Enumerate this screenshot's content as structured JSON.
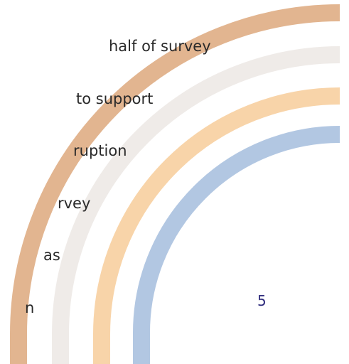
{
  "body_text": {
    "lines": [
      "half of survey",
      "to support",
      "ruption",
      "rvey",
      "as",
      "n"
    ]
  },
  "page_number": "5",
  "decoration": {
    "arc_colors": [
      "#e2b590",
      "#efebe8",
      "#f8d4a9",
      "#b2c7e2"
    ]
  }
}
